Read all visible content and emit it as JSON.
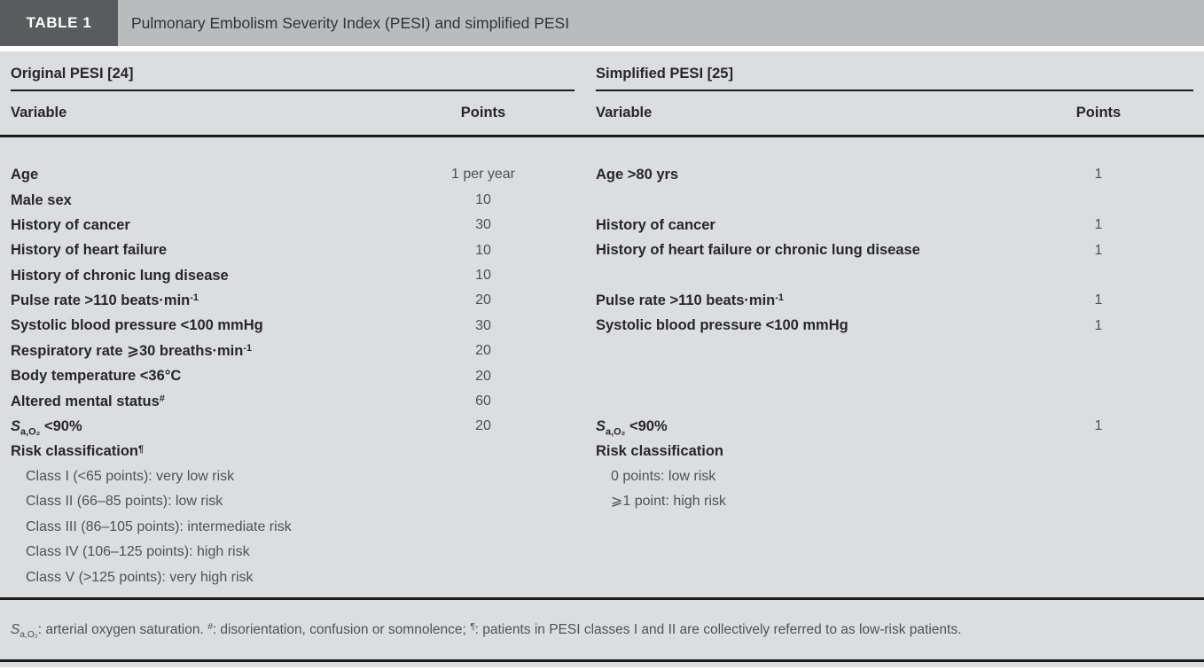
{
  "table": {
    "tag": "TABLE 1",
    "title": "Pulmonary Embolism Severity Index (PESI) and simplified PESI",
    "left_group": {
      "header": "Original PESI [24]",
      "col_variable": "Variable",
      "col_points": "Points"
    },
    "right_group": {
      "header": "Simplified PESI [25]",
      "col_variable": "Variable",
      "col_points": "Points"
    },
    "rows": [
      {
        "left": {
          "runs": [
            {
              "t": "Age"
            }
          ],
          "bold": true
        },
        "left_points": "1 per year",
        "right": {
          "runs": [
            {
              "t": "Age >80 yrs"
            }
          ],
          "bold": true
        },
        "right_points": "1"
      },
      {
        "left": {
          "runs": [
            {
              "t": "Male sex"
            }
          ],
          "bold": true
        },
        "left_points": "10",
        "right": null,
        "right_points": ""
      },
      {
        "left": {
          "runs": [
            {
              "t": "History of cancer"
            }
          ],
          "bold": true
        },
        "left_points": "30",
        "right": {
          "runs": [
            {
              "t": "History of cancer"
            }
          ],
          "bold": true
        },
        "right_points": "1"
      },
      {
        "left": {
          "runs": [
            {
              "t": "History of heart failure"
            }
          ],
          "bold": true
        },
        "left_points": "10",
        "right": {
          "runs": [
            {
              "t": "History of heart failure or chronic lung disease"
            }
          ],
          "bold": true
        },
        "right_points": "1"
      },
      {
        "left": {
          "runs": [
            {
              "t": "History of chronic lung disease"
            }
          ],
          "bold": true
        },
        "left_points": "10",
        "right": null,
        "right_points": ""
      },
      {
        "left": {
          "runs": [
            {
              "t": "Pulse rate >110 beats·min"
            },
            {
              "tag": "sup",
              "t": "-1"
            }
          ],
          "bold": true
        },
        "left_points": "20",
        "right": {
          "runs": [
            {
              "t": "Pulse rate >110 beats·min"
            },
            {
              "tag": "sup",
              "t": "-1"
            }
          ],
          "bold": true
        },
        "right_points": "1"
      },
      {
        "left": {
          "runs": [
            {
              "t": "Systolic blood pressure <100 mmHg"
            }
          ],
          "bold": true
        },
        "left_points": "30",
        "right": {
          "runs": [
            {
              "t": "Systolic blood pressure <100 mmHg"
            }
          ],
          "bold": true
        },
        "right_points": "1"
      },
      {
        "left": {
          "runs": [
            {
              "t": "Respiratory rate ⩾30 breaths·min"
            },
            {
              "tag": "sup",
              "t": "-1"
            }
          ],
          "bold": true
        },
        "left_points": "20",
        "right": null,
        "right_points": ""
      },
      {
        "left": {
          "runs": [
            {
              "t": "Body temperature <36°C"
            }
          ],
          "bold": true
        },
        "left_points": "20",
        "right": null,
        "right_points": ""
      },
      {
        "left": {
          "runs": [
            {
              "t": "Altered mental status"
            },
            {
              "tag": "sup",
              "t": "#"
            }
          ],
          "bold": true
        },
        "left_points": "60",
        "right": null,
        "right_points": ""
      },
      {
        "left": {
          "runs": [
            {
              "tag": "i",
              "t": "S"
            },
            {
              "tag": "sub",
              "t": "a,O₂"
            },
            {
              "t": " <90%"
            }
          ],
          "bold": true
        },
        "left_points": "20",
        "right": {
          "runs": [
            {
              "tag": "i",
              "t": "S"
            },
            {
              "tag": "sub",
              "t": "a,O₂"
            },
            {
              "t": " <90%"
            }
          ],
          "bold": true
        },
        "right_points": "1"
      },
      {
        "left": {
          "runs": [
            {
              "t": "Risk classification"
            },
            {
              "tag": "sup",
              "t": "¶"
            }
          ],
          "bold": true
        },
        "left_points": "",
        "right": {
          "runs": [
            {
              "t": "Risk classification"
            }
          ],
          "bold": true
        },
        "right_points": ""
      },
      {
        "left": {
          "runs": [
            {
              "t": "Class I (<65 points): very low risk"
            }
          ],
          "indent": true
        },
        "left_points": "",
        "right": {
          "runs": [
            {
              "t": "0 points: low risk"
            }
          ],
          "indent": true
        },
        "right_points": ""
      },
      {
        "left": {
          "runs": [
            {
              "t": "Class II (66–85 points): low risk"
            }
          ],
          "indent": true
        },
        "left_points": "",
        "right": {
          "runs": [
            {
              "t": "⩾1 point: high risk"
            }
          ],
          "indent": true
        },
        "right_points": ""
      },
      {
        "left": {
          "runs": [
            {
              "t": "Class III (86–105 points): intermediate risk"
            }
          ],
          "indent": true
        },
        "left_points": "",
        "right": null,
        "right_points": ""
      },
      {
        "left": {
          "runs": [
            {
              "t": "Class IV (106–125 points): high risk"
            }
          ],
          "indent": true
        },
        "left_points": "",
        "right": null,
        "right_points": ""
      },
      {
        "left": {
          "runs": [
            {
              "t": "Class V (>125 points): very high risk"
            }
          ],
          "indent": true
        },
        "left_points": "",
        "right": null,
        "right_points": ""
      }
    ],
    "footnote_runs": [
      {
        "tag": "i",
        "t": "S"
      },
      {
        "tag": "sub",
        "t": "a,O₂"
      },
      {
        "t": ": arterial oxygen saturation. "
      },
      {
        "tag": "sup",
        "t": "#",
        "cls": "it"
      },
      {
        "t": ": disorientation, confusion or somnolence; "
      },
      {
        "tag": "sup",
        "t": "¶",
        "cls": "it"
      },
      {
        "t": ": patients in PESI classes I and II are collectively referred to as low-risk patients."
      }
    ]
  },
  "colors": {
    "tag_background": "#5a5b5e",
    "title_background": "#b9bbbd",
    "panel_background": "#dcddde",
    "rule": "#1b1b1b",
    "bold_text": "#28262a",
    "regular_text": "#505155"
  }
}
